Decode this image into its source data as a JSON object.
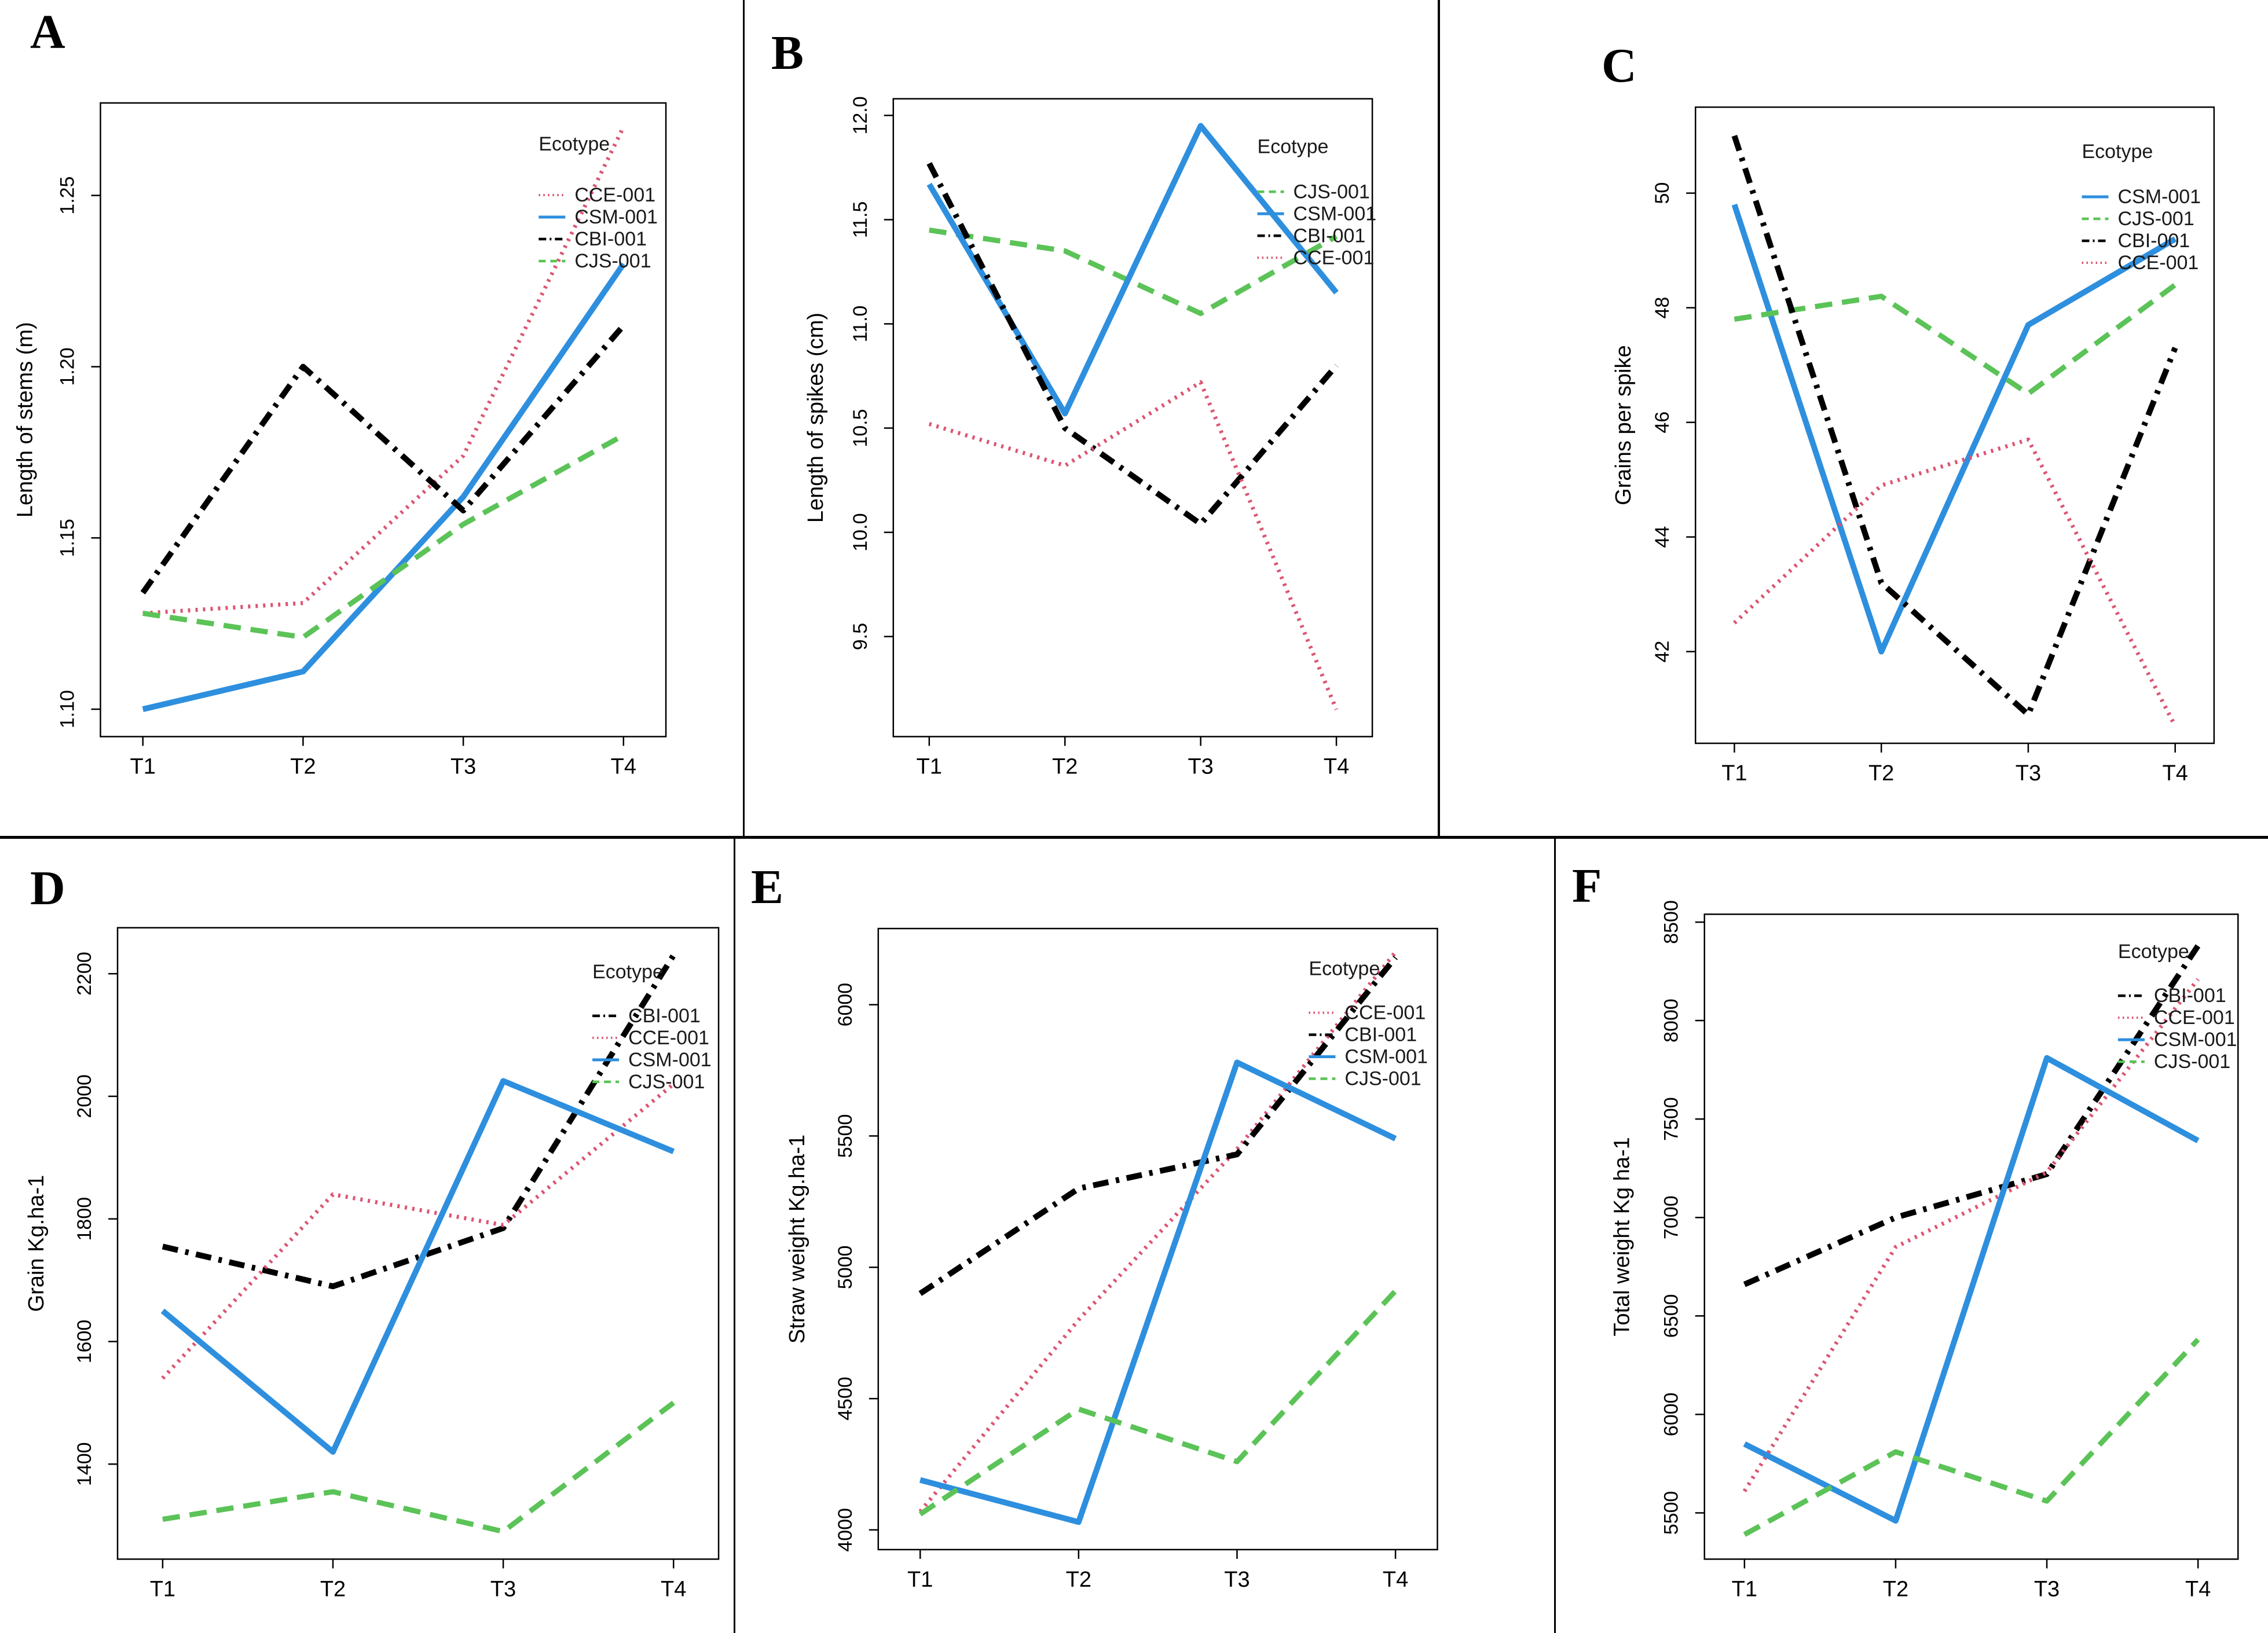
{
  "figure": {
    "background": "#ffffff",
    "divider_color": "#000000",
    "legend_title": "Ecotype",
    "x_categories": [
      "T1",
      "T2",
      "T3",
      "T4"
    ]
  },
  "ecotype_styles": {
    "CCE-001": {
      "color": "#DC5472",
      "linetype": "dotted"
    },
    "CSM-001": {
      "color": "#2E8FDE",
      "linetype": "solid"
    },
    "CBI-001": {
      "color": "#000000",
      "linetype": "dashdot"
    },
    "CJS-001": {
      "color": "#5BC357",
      "linetype": "dashed"
    }
  },
  "chart_data": [
    {
      "panel": "A",
      "type": "line",
      "ylabel": "Length of stems (m)",
      "categories": [
        "T1",
        "T2",
        "T3",
        "T4"
      ],
      "ylim": [
        1.092,
        1.277
      ],
      "yticks": [
        1.1,
        1.15,
        1.2,
        1.25
      ],
      "ytick_labels": [
        "1.10",
        "1.15",
        "1.20",
        "1.25"
      ],
      "legend_title": "Ecotype",
      "legend_position": "top-right",
      "grid": false,
      "legend_order": [
        "CCE-001",
        "CSM-001",
        "CBI-001",
        "CJS-001"
      ],
      "series": [
        {
          "name": "CCE-001",
          "values": [
            1.128,
            1.131,
            1.174,
            1.27
          ]
        },
        {
          "name": "CSM-001",
          "values": [
            1.1,
            1.111,
            1.162,
            1.23
          ]
        },
        {
          "name": "CBI-001",
          "values": [
            1.134,
            1.2,
            1.158,
            1.212
          ]
        },
        {
          "name": "CJS-001",
          "values": [
            1.128,
            1.121,
            1.154,
            1.18
          ]
        }
      ]
    },
    {
      "panel": "B",
      "type": "line",
      "ylabel": "Length of spikes (cm)",
      "categories": [
        "T1",
        "T2",
        "T3",
        "T4"
      ],
      "ylim": [
        9.02,
        12.08
      ],
      "yticks": [
        9.5,
        10.0,
        10.5,
        11.0,
        11.5,
        12.0
      ],
      "ytick_labels": [
        "9.5",
        "10.0",
        "10.5",
        "11.0",
        "11.5",
        "12.0"
      ],
      "legend_title": "Ecotype",
      "legend_position": "top-right",
      "grid": false,
      "legend_order": [
        "CJS-001",
        "CSM-001",
        "CBI-001",
        "CCE-001"
      ],
      "series": [
        {
          "name": "CJS-001",
          "values": [
            11.45,
            11.35,
            11.05,
            11.42
          ]
        },
        {
          "name": "CSM-001",
          "values": [
            11.67,
            10.57,
            11.95,
            11.15
          ]
        },
        {
          "name": "CBI-001",
          "values": [
            11.77,
            10.5,
            10.04,
            10.8
          ]
        },
        {
          "name": "CCE-001",
          "values": [
            10.52,
            10.32,
            10.72,
            9.15
          ]
        }
      ]
    },
    {
      "panel": "C",
      "type": "line",
      "ylabel": "Grains per spike",
      "categories": [
        "T1",
        "T2",
        "T3",
        "T4"
      ],
      "ylim": [
        40.4,
        51.5
      ],
      "yticks": [
        42,
        44,
        46,
        48,
        50
      ],
      "ytick_labels": [
        "42",
        "44",
        "46",
        "48",
        "50"
      ],
      "legend_title": "Ecotype",
      "legend_position": "top-right",
      "grid": false,
      "legend_order": [
        "CSM-001",
        "CJS-001",
        "CBI-001",
        "CCE-001"
      ],
      "series": [
        {
          "name": "CSM-001",
          "values": [
            49.8,
            42.0,
            47.7,
            49.2
          ]
        },
        {
          "name": "CJS-001",
          "values": [
            47.8,
            48.2,
            46.5,
            48.4
          ]
        },
        {
          "name": "CBI-001",
          "values": [
            51.0,
            43.2,
            40.9,
            47.3
          ]
        },
        {
          "name": "CCE-001",
          "values": [
            42.5,
            44.9,
            45.7,
            40.7
          ]
        }
      ]
    },
    {
      "panel": "D",
      "type": "line",
      "ylabel": "Grain Kg.ha-1",
      "categories": [
        "T1",
        "T2",
        "T3",
        "T4"
      ],
      "ylim": [
        1245,
        2275
      ],
      "yticks": [
        1400,
        1600,
        1800,
        2000,
        2200
      ],
      "ytick_labels": [
        "1400",
        "1600",
        "1800",
        "2000",
        "2200"
      ],
      "legend_title": "Ecotype",
      "legend_position": "top-right",
      "grid": false,
      "legend_order": [
        "CBI-001",
        "CCE-001",
        "CSM-001",
        "CJS-001"
      ],
      "series": [
        {
          "name": "CBI-001",
          "values": [
            1755,
            1690,
            1785,
            2230
          ]
        },
        {
          "name": "CCE-001",
          "values": [
            1540,
            1840,
            1790,
            2020
          ]
        },
        {
          "name": "CSM-001",
          "values": [
            1650,
            1420,
            2025,
            1910
          ]
        },
        {
          "name": "CJS-001",
          "values": [
            1310,
            1355,
            1290,
            1500
          ]
        }
      ]
    },
    {
      "panel": "E",
      "type": "line",
      "ylabel": "Straw weight Kg.ha-1",
      "categories": [
        "T1",
        "T2",
        "T3",
        "T4"
      ],
      "ylim": [
        3925,
        6290
      ],
      "yticks": [
        4000,
        4500,
        5000,
        5500,
        6000
      ],
      "ytick_labels": [
        "4000",
        "4500",
        "5000",
        "5500",
        "6000"
      ],
      "legend_title": "Ecotype",
      "legend_position": "top-right",
      "grid": false,
      "legend_order": [
        "CCE-001",
        "CBI-001",
        "CSM-001",
        "CJS-001"
      ],
      "series": [
        {
          "name": "CCE-001",
          "values": [
            4070,
            4800,
            5450,
            6200
          ]
        },
        {
          "name": "CBI-001",
          "values": [
            4900,
            5300,
            5430,
            6180
          ]
        },
        {
          "name": "CSM-001",
          "values": [
            4190,
            4030,
            5780,
            5490
          ]
        },
        {
          "name": "CJS-001",
          "values": [
            4060,
            4460,
            4260,
            4910
          ]
        }
      ]
    },
    {
      "panel": "F",
      "type": "line",
      "ylabel": "Total weight Kg ha-1",
      "categories": [
        "T1",
        "T2",
        "T3",
        "T4"
      ],
      "ylim": [
        5265,
        8540
      ],
      "yticks": [
        5500,
        6000,
        6500,
        7000,
        7500,
        8000,
        8500
      ],
      "ytick_labels": [
        "5500",
        "6000",
        "6500",
        "7000",
        "7500",
        "8000",
        "8500"
      ],
      "legend_title": "Ecotype",
      "legend_position": "top-right",
      "grid": false,
      "legend_order": [
        "CBI-001",
        "CCE-001",
        "CSM-001",
        "CJS-001"
      ],
      "series": [
        {
          "name": "CBI-001",
          "values": [
            6660,
            7000,
            7220,
            8380
          ]
        },
        {
          "name": "CCE-001",
          "values": [
            5610,
            6850,
            7230,
            8210
          ]
        },
        {
          "name": "CSM-001",
          "values": [
            5850,
            5460,
            7810,
            7390
          ]
        },
        {
          "name": "CJS-001",
          "values": [
            5390,
            5810,
            5560,
            6380
          ]
        }
      ]
    }
  ]
}
